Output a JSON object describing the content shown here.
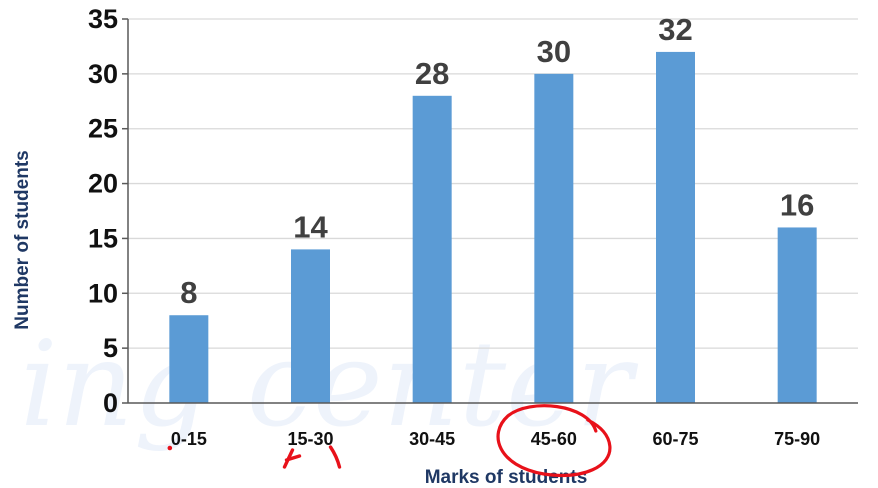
{
  "chart_data": {
    "type": "bar",
    "title": "",
    "xlabel": "Marks of students",
    "ylabel": "Number of students",
    "categories": [
      "0-15",
      "15-30",
      "30-45",
      "45-60",
      "60-75",
      "75-90"
    ],
    "values": [
      8,
      14,
      28,
      30,
      32,
      16
    ],
    "ylim": [
      0,
      35
    ],
    "yticks": [
      0,
      5,
      10,
      15,
      20,
      25,
      30,
      35
    ],
    "grid": true,
    "legend": "none",
    "data_labels": true,
    "annotation": "45-60 circled in red"
  },
  "colors": {
    "bar": "#5b9bd5",
    "grid": "#d9d9d9",
    "axis": "#595959",
    "annotation": "#e8111a",
    "watermark": "#eef3fb"
  },
  "watermark_text": "ing center"
}
